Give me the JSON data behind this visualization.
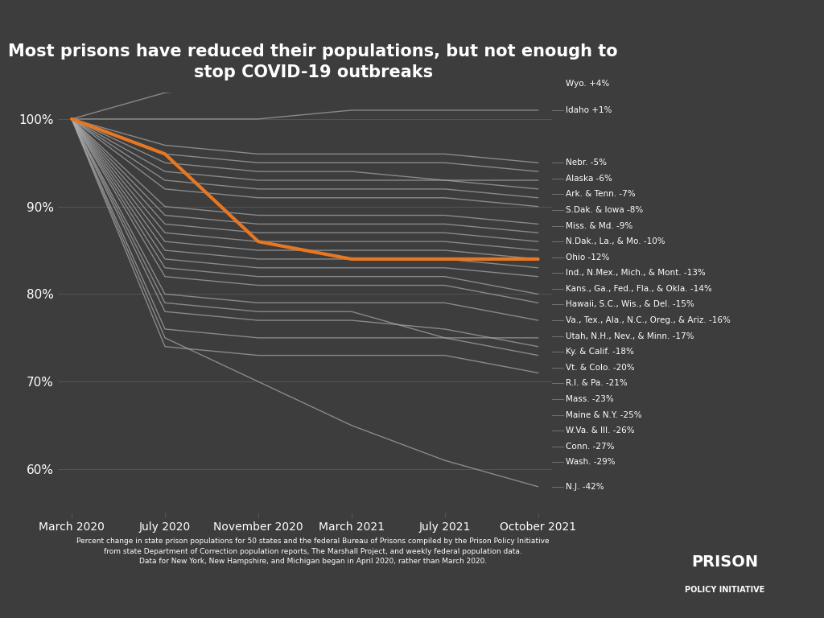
{
  "title": "Most prisons have reduced their populations, but not enough to\nstop COVID-19 outbreaks",
  "background_color": "#3d3d3d",
  "text_color": "#ffffff",
  "grid_color": "#555555",
  "x_labels": [
    "March 2020",
    "July 2020",
    "November 2020",
    "March 2021",
    "July 2021",
    "October 2021"
  ],
  "x_positions": [
    0,
    1,
    2,
    3,
    4,
    5
  ],
  "y_ticks": [
    60,
    70,
    80,
    90,
    100
  ],
  "y_labels": [
    "60%",
    "70%",
    "80%",
    "90%",
    "100%"
  ],
  "footnote": "Percent change in state prison populations for 50 states and the federal Bureau of Prisons compiled by the Prison Policy Initiative\nfrom state Department of Correction population reports, The Marshall Project, and weekly federal population data.\nData for New York, New Hampshire, and Michigan began in April 2020, rather than March 2020.",
  "orange_color": "#e87722",
  "gray_color": "#aaaaaa",
  "average_line": [
    100,
    96,
    86,
    84,
    84,
    84
  ],
  "lines": [
    {
      "label": "Wyo. +4%",
      "values": [
        100,
        103,
        104,
        104,
        104,
        104
      ]
    },
    {
      "label": "Idaho +1%",
      "values": [
        100,
        100,
        100,
        101,
        101,
        101
      ]
    },
    {
      "label": "Nebr. -5%",
      "values": [
        100,
        97,
        96,
        96,
        96,
        95
      ]
    },
    {
      "label": "Alaska -6%",
      "values": [
        100,
        96,
        95,
        95,
        95,
        94
      ]
    },
    {
      "label": "Ark. & Tenn. -7%",
      "values": [
        100,
        95,
        94,
        94,
        93,
        93
      ]
    },
    {
      "label": "S.Dak. & Iowa -8%",
      "values": [
        100,
        94,
        93,
        93,
        93,
        92
      ]
    },
    {
      "label": "Miss. & Md. -9%",
      "values": [
        100,
        93,
        92,
        92,
        92,
        91
      ]
    },
    {
      "label": "N.Dak., La., & Mo. -10%",
      "values": [
        100,
        92,
        91,
        91,
        91,
        90
      ]
    },
    {
      "label": "Ohio -12%",
      "values": [
        100,
        90,
        89,
        89,
        89,
        88
      ]
    },
    {
      "label": "Ind., N.Mex., Mich., & Mont. -13%",
      "values": [
        100,
        89,
        88,
        88,
        88,
        87
      ]
    },
    {
      "label": "Kans., Ga., Fed., Fla., & Okla. -14%",
      "values": [
        100,
        88,
        87,
        87,
        87,
        86
      ]
    },
    {
      "label": "Hawaii, S.C., Wis., & Del. -15%",
      "values": [
        100,
        87,
        86,
        86,
        86,
        85
      ]
    },
    {
      "label": "Va., Tex., Ala., N.C., Oreg., & Ariz. -16%",
      "values": [
        100,
        86,
        85,
        85,
        85,
        84
      ]
    },
    {
      "label": "Utah, N.H., Nev., & Minn. -17%",
      "values": [
        100,
        85,
        84,
        84,
        84,
        83
      ]
    },
    {
      "label": "Ky. & Calif. -18%",
      "values": [
        100,
        84,
        83,
        83,
        83,
        82
      ]
    },
    {
      "label": "Vt. & Colo. -20%",
      "values": [
        100,
        83,
        82,
        82,
        82,
        80
      ]
    },
    {
      "label": "R.I. & Pa. -21%",
      "values": [
        100,
        82,
        81,
        81,
        81,
        79
      ]
    },
    {
      "label": "Mass. -23%",
      "values": [
        100,
        80,
        79,
        79,
        79,
        77
      ]
    },
    {
      "label": "Maine & N.Y. -25%",
      "values": [
        100,
        79,
        78,
        78,
        75,
        75
      ]
    },
    {
      "label": "W.Va. & Ill. -26%",
      "values": [
        100,
        78,
        77,
        77,
        76,
        74
      ]
    },
    {
      "label": "Conn. -27%",
      "values": [
        100,
        76,
        75,
        75,
        75,
        73
      ]
    },
    {
      "label": "Wash. -29%",
      "values": [
        100,
        74,
        73,
        73,
        73,
        71
      ]
    },
    {
      "label": "N.J. -42%",
      "values": [
        100,
        75,
        70,
        65,
        61,
        58
      ]
    }
  ],
  "lines_raw": [
    [
      100,
      103,
      104,
      104,
      104,
      104
    ],
    [
      100,
      100,
      100,
      101,
      101,
      101
    ],
    [
      100,
      97,
      96,
      96,
      96,
      95
    ],
    [
      100,
      96,
      95,
      95,
      95,
      94
    ],
    [
      100,
      95,
      94,
      94,
      93,
      93
    ],
    [
      100,
      94,
      93,
      93,
      93,
      92
    ],
    [
      100,
      93,
      92,
      92,
      92,
      91
    ],
    [
      100,
      92,
      91,
      91,
      91,
      90
    ],
    [
      100,
      90,
      89,
      89,
      89,
      88
    ],
    [
      100,
      89,
      88,
      88,
      88,
      87
    ],
    [
      100,
      88,
      87,
      87,
      87,
      86
    ],
    [
      100,
      87,
      86,
      86,
      86,
      85
    ],
    [
      100,
      86,
      85,
      85,
      85,
      84
    ],
    [
      100,
      85,
      84,
      84,
      84,
      83
    ],
    [
      100,
      84,
      83,
      83,
      83,
      82
    ],
    [
      100,
      83,
      82,
      82,
      82,
      80
    ],
    [
      100,
      82,
      81,
      81,
      81,
      79
    ],
    [
      100,
      80,
      79,
      79,
      79,
      77
    ],
    [
      100,
      79,
      78,
      78,
      75,
      75
    ],
    [
      100,
      78,
      77,
      77,
      76,
      74
    ],
    [
      100,
      76,
      75,
      75,
      75,
      73
    ],
    [
      100,
      74,
      73,
      73,
      73,
      71
    ],
    [
      100,
      75,
      70,
      65,
      61,
      58
    ]
  ],
  "labels_final": [
    "Wyo. +4%",
    "Idaho +1%",
    "Nebr. -5%",
    "Alaska -6%",
    "Ark. & Tenn. -7%",
    "S.Dak. & Iowa -8%",
    "Miss. & Md. -9%",
    "N.Dak., La., & Mo. -10%",
    "Ohio -12%",
    "Ind., N.Mex., Mich., & Mont. -13%",
    "Kans., Ga., Fed., Fla., & Okla. -14%",
    "Hawaii, S.C., Wis., & Del. -15%",
    "Va., Tex., Ala., N.C., Oreg., & Ariz. -16%",
    "Utah, N.H., Nev., & Minn. -17%",
    "Ky. & Calif. -18%",
    "Vt. & Colo. -20%",
    "R.I. & Pa. -21%",
    "Mass. -23%",
    "Maine & N.Y. -25%",
    "W.Va. & Ill. -26%",
    "Conn. -27%",
    "Wash. -29%",
    "N.J. -42%"
  ]
}
